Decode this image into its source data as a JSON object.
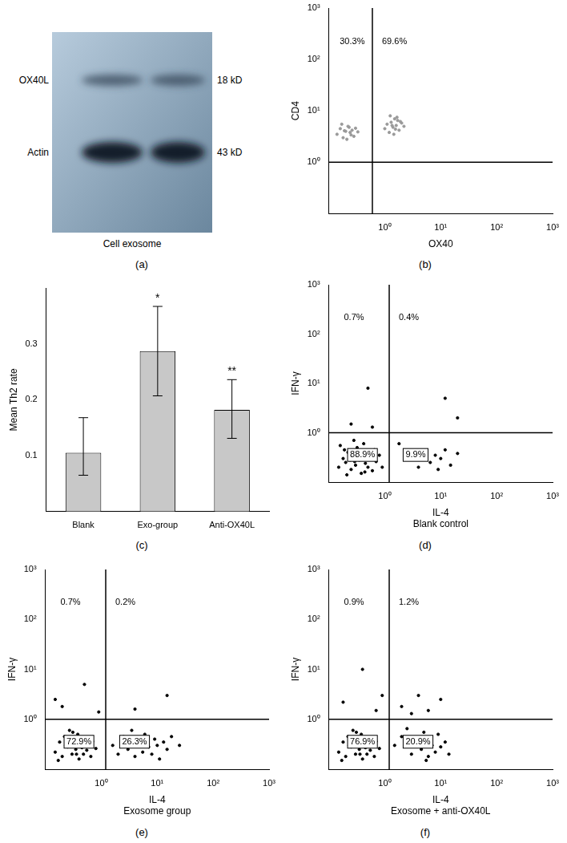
{
  "blot": {
    "caption": "(a)",
    "bands": [
      {
        "label": "OX40L",
        "size": "18 kD"
      },
      {
        "label": "Actin",
        "size": "43 kD"
      }
    ],
    "lane_label": "Cell exosome"
  },
  "chart_data": [
    {
      "caption": "(b)",
      "type": "scatter",
      "log": true,
      "grid": false,
      "color": "#9a9a9a",
      "x_label": "OX40",
      "y_label": "CD4",
      "xlim": [
        0.1,
        1000
      ],
      "ylim": [
        0.1,
        1000
      ],
      "xticks": [
        {
          "value": 1,
          "label": "10⁰"
        },
        {
          "value": 10,
          "label": "10¹"
        },
        {
          "value": 100,
          "label": "10²"
        },
        {
          "value": 1000,
          "label": "10³"
        }
      ],
      "yticks": [
        {
          "value": 1,
          "label": "10⁰"
        },
        {
          "value": 10,
          "label": "10¹"
        },
        {
          "value": 100,
          "label": "10²"
        },
        {
          "value": 1000,
          "label": "10³"
        }
      ],
      "gates": {
        "x": 0.6,
        "y": 1
      },
      "quadrants": {
        "UL": {
          "value": 30.3,
          "label": "30.3%"
        },
        "UR": {
          "value": 69.6,
          "label": "69.6%"
        }
      },
      "x": [
        0.14,
        0.16,
        0.18,
        0.2,
        0.22,
        0.24,
        0.26,
        0.28,
        0.3,
        0.33,
        0.17,
        0.21,
        0.25,
        0.19,
        0.23,
        1.0,
        1.1,
        1.2,
        1.3,
        1.4,
        1.5,
        1.6,
        1.7,
        1.8,
        2.0,
        2.2,
        1.25,
        1.45,
        1.65,
        1.35,
        1.55,
        1.9
      ],
      "values": [
        3.5,
        4.5,
        3,
        4,
        5,
        3.8,
        4.2,
        3.2,
        4.6,
        3.9,
        5.5,
        2.8,
        3.4,
        4.1,
        4.8,
        4.5,
        5.5,
        3.8,
        6,
        4.8,
        7,
        5.2,
        6.5,
        4.2,
        5.8,
        5,
        8,
        3.5,
        7.5,
        5.2,
        4.4,
        6.2
      ]
    },
    {
      "caption": "(c)",
      "type": "bar",
      "grid": false,
      "color": "#c8c8c8",
      "y_label": "Mean Th2 rate",
      "categories": [
        "Blank",
        "Exo-group",
        "Anti-OX40L"
      ],
      "values": [
        0.105,
        0.287,
        0.182
      ],
      "error_bars": {
        "low": [
          0.065,
          0.207,
          0.131
        ],
        "high": [
          0.168,
          0.367,
          0.236
        ]
      },
      "annotations": [
        {
          "category": "Exo-group",
          "text": "*"
        },
        {
          "category": "Anti-OX40L",
          "text": "**"
        }
      ],
      "ylim": [
        0,
        0.4
      ],
      "yticks": [
        0.1,
        0.2,
        0.3
      ]
    },
    {
      "caption": "(d)",
      "type": "scatter",
      "log": true,
      "grid": false,
      "color": "#000000",
      "x_label": "IL-4",
      "subtitle": "Blank control",
      "y_label": "IFN-γ",
      "xlim": [
        0.1,
        1000
      ],
      "ylim": [
        0.1,
        1000
      ],
      "xticks": [
        {
          "value": 1,
          "label": "10⁰"
        },
        {
          "value": 10,
          "label": "10¹"
        },
        {
          "value": 100,
          "label": "10²"
        },
        {
          "value": 1000,
          "label": "10³"
        }
      ],
      "yticks": [
        {
          "value": 1,
          "label": "10⁰"
        },
        {
          "value": 10,
          "label": "10¹"
        },
        {
          "value": 100,
          "label": "10²"
        },
        {
          "value": 1000,
          "label": "10³"
        }
      ],
      "gates": {
        "x": 1.2,
        "y": 1
      },
      "quadrants": {
        "UL": {
          "value": 0.7,
          "label": "0.7%"
        },
        "UR": {
          "value": 0.4,
          "label": "0.4%"
        },
        "LL": {
          "value": 88.9,
          "label": "88.9%"
        },
        "LR": {
          "value": 9.9,
          "label": "9.9%"
        }
      },
      "x": [
        0.15,
        0.18,
        0.2,
        0.22,
        0.25,
        0.27,
        0.3,
        0.32,
        0.35,
        0.38,
        0.4,
        0.42,
        0.45,
        0.48,
        0.5,
        0.55,
        0.6,
        0.65,
        0.7,
        0.8,
        0.9,
        0.16,
        0.21,
        0.28,
        0.34,
        0.24,
        0.19,
        0.44,
        0.37,
        0.29,
        2.5,
        4,
        5,
        6.5,
        8,
        9,
        10,
        12,
        15,
        20,
        1.8,
        0.25,
        0.5,
        0.6,
        12,
        20
      ],
      "values": [
        0.2,
        0.3,
        0.25,
        0.4,
        0.18,
        0.35,
        0.22,
        0.5,
        0.28,
        0.15,
        0.32,
        0.6,
        0.24,
        0.42,
        0.2,
        0.3,
        0.17,
        0.45,
        0.26,
        0.35,
        0.2,
        0.55,
        0.14,
        0.7,
        0.4,
        0.28,
        0.45,
        0.16,
        0.36,
        0.26,
        0.3,
        0.2,
        0.4,
        0.25,
        0.35,
        0.18,
        0.3,
        0.45,
        0.22,
        0.38,
        0.6,
        1.5,
        8,
        1.3,
        5,
        2
      ]
    },
    {
      "caption": "(e)",
      "type": "scatter",
      "log": true,
      "grid": false,
      "color": "#000000",
      "x_label": "IL-4",
      "subtitle": "Exosome group",
      "y_label": "IFN-γ",
      "xlim": [
        0.1,
        1000
      ],
      "ylim": [
        0.1,
        1000
      ],
      "xticks": [
        {
          "value": 1,
          "label": "10⁰"
        },
        {
          "value": 10,
          "label": "10¹"
        },
        {
          "value": 100,
          "label": "10²"
        },
        {
          "value": 1000,
          "label": "10³"
        }
      ],
      "yticks": [
        {
          "value": 1,
          "label": "10⁰"
        },
        {
          "value": 10,
          "label": "10¹"
        },
        {
          "value": 100,
          "label": "10²"
        },
        {
          "value": 1000,
          "label": "10³"
        }
      ],
      "gates": {
        "x": 1.2,
        "y": 1
      },
      "quadrants": {
        "UL": {
          "value": 0.7,
          "label": "0.7%"
        },
        "UR": {
          "value": 0.2,
          "label": "0.2%"
        },
        "LL": {
          "value": 72.9,
          "label": "72.9%"
        },
        "LR": {
          "value": 26.3,
          "label": "26.3%"
        }
      },
      "x": [
        0.15,
        0.18,
        0.2,
        0.22,
        0.25,
        0.27,
        0.3,
        0.32,
        0.35,
        0.38,
        0.4,
        0.42,
        0.45,
        0.48,
        0.5,
        0.55,
        0.6,
        0.65,
        0.7,
        0.8,
        0.17,
        0.23,
        0.31,
        0.36,
        0.26,
        1.6,
        2,
        2.5,
        3,
        3.5,
        4,
        5,
        5.5,
        6,
        7,
        8,
        9,
        10,
        11,
        13,
        15,
        18,
        25,
        0.15,
        0.2,
        0.5,
        0.9,
        4,
        15
      ],
      "values": [
        0.22,
        0.35,
        0.18,
        0.45,
        0.28,
        0.6,
        0.2,
        0.32,
        0.25,
        0.5,
        0.16,
        0.38,
        0.27,
        0.2,
        0.42,
        0.24,
        0.3,
        0.18,
        0.36,
        0.26,
        0.15,
        0.3,
        0.55,
        0.2,
        0.4,
        0.3,
        0.2,
        0.45,
        0.25,
        0.6,
        0.18,
        0.35,
        0.22,
        0.5,
        0.28,
        0.2,
        0.4,
        0.3,
        0.16,
        0.35,
        0.25,
        0.45,
        0.3,
        2.5,
        1.8,
        5,
        1.4,
        1.6,
        3
      ]
    },
    {
      "caption": "(f)",
      "type": "scatter",
      "log": true,
      "grid": false,
      "color": "#000000",
      "x_label": "IL-4",
      "subtitle": "Exosome + anti-OX40L",
      "y_label": "IFN-γ",
      "xlim": [
        0.1,
        1000
      ],
      "ylim": [
        0.1,
        1000
      ],
      "xticks": [
        {
          "value": 1,
          "label": "10⁰"
        },
        {
          "value": 10,
          "label": "10¹"
        },
        {
          "value": 100,
          "label": "10²"
        },
        {
          "value": 1000,
          "label": "10³"
        }
      ],
      "yticks": [
        {
          "value": 1,
          "label": "10⁰"
        },
        {
          "value": 10,
          "label": "10¹"
        },
        {
          "value": 100,
          "label": "10²"
        },
        {
          "value": 1000,
          "label": "10³"
        }
      ],
      "gates": {
        "x": 1.2,
        "y": 1
      },
      "quadrants": {
        "UL": {
          "value": 0.9,
          "label": "0.9%"
        },
        "UR": {
          "value": 1.2,
          "label": "1.2%"
        },
        "LL": {
          "value": 76.9,
          "label": "76.9%"
        },
        "LR": {
          "value": 20.9,
          "label": "20.9%"
        }
      },
      "x": [
        0.15,
        0.18,
        0.2,
        0.22,
        0.25,
        0.27,
        0.3,
        0.32,
        0.35,
        0.38,
        0.4,
        0.42,
        0.45,
        0.48,
        0.5,
        0.55,
        0.6,
        0.65,
        0.7,
        0.8,
        0.17,
        0.23,
        0.31,
        0.36,
        0.26,
        1.5,
        2,
        3,
        4,
        4.5,
        5,
        6,
        6.5,
        7,
        8,
        9,
        10,
        12,
        14,
        2.5,
        5.5,
        0.18,
        0.4,
        0.7,
        0.9,
        2,
        4,
        6,
        10,
        3
      ],
      "values": [
        0.22,
        0.35,
        0.18,
        0.45,
        0.28,
        0.6,
        0.2,
        0.32,
        0.25,
        0.5,
        0.16,
        0.38,
        0.27,
        0.2,
        0.42,
        0.24,
        0.3,
        0.18,
        0.36,
        0.26,
        0.15,
        0.3,
        0.55,
        0.2,
        0.4,
        0.3,
        0.45,
        0.2,
        0.35,
        0.25,
        0.55,
        0.18,
        0.4,
        0.3,
        0.22,
        0.5,
        0.28,
        0.35,
        0.2,
        0.65,
        0.15,
        2.2,
        10,
        1.5,
        3,
        1.8,
        3,
        1.5,
        2.5,
        1.3
      ]
    }
  ]
}
